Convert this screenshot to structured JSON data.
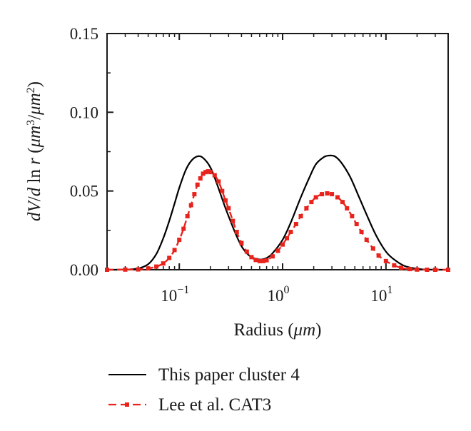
{
  "chart_data": {
    "type": "line",
    "xlabel_text": "Radius (",
    "xlabel_unit": "μm",
    "xlabel_close": ")",
    "ylabel_prefix": "dV",
    "ylabel_slash": "/",
    "ylabel_d": "d",
    "ylabel_ln": " ln ",
    "ylabel_r": "r",
    "ylabel_open": " (",
    "ylabel_um1": "μm",
    "ylabel_exp1": "3",
    "ylabel_slash2": "/",
    "ylabel_um2": "μm",
    "ylabel_exp2": "2",
    "ylabel_close": ")",
    "x_scale": "log",
    "xlim": [
      0.02,
      40
    ],
    "ylim": [
      0,
      0.15
    ],
    "x_ticks": [
      {
        "value": 0.1,
        "base": "10",
        "exp": "−1"
      },
      {
        "value": 1,
        "base": "10",
        "exp": "0"
      },
      {
        "value": 10,
        "base": "10",
        "exp": "1"
      }
    ],
    "y_ticks": [
      {
        "value": 0.0,
        "label": "0.00"
      },
      {
        "value": 0.05,
        "label": "0.05"
      },
      {
        "value": 0.1,
        "label": "0.10"
      },
      {
        "value": 0.15,
        "label": "0.15"
      }
    ],
    "grid": false,
    "legend_position": "bottom",
    "series": [
      {
        "name": "This paper cluster 4",
        "color": "#000000",
        "style": "solid",
        "points": [
          [
            0.02,
            0.0
          ],
          [
            0.03,
            0.0001
          ],
          [
            0.04,
            0.0008
          ],
          [
            0.05,
            0.0035
          ],
          [
            0.06,
            0.01
          ],
          [
            0.07,
            0.02
          ],
          [
            0.08,
            0.031
          ],
          [
            0.09,
            0.042
          ],
          [
            0.1,
            0.052
          ],
          [
            0.115,
            0.063
          ],
          [
            0.13,
            0.069
          ],
          [
            0.15,
            0.072
          ],
          [
            0.17,
            0.071
          ],
          [
            0.2,
            0.065
          ],
          [
            0.23,
            0.055
          ],
          [
            0.27,
            0.042
          ],
          [
            0.3,
            0.034
          ],
          [
            0.35,
            0.023
          ],
          [
            0.4,
            0.015
          ],
          [
            0.45,
            0.0105
          ],
          [
            0.5,
            0.008
          ],
          [
            0.6,
            0.0065
          ],
          [
            0.7,
            0.0075
          ],
          [
            0.8,
            0.0105
          ],
          [
            1.0,
            0.019
          ],
          [
            1.2,
            0.03
          ],
          [
            1.5,
            0.046
          ],
          [
            1.8,
            0.058
          ],
          [
            2.1,
            0.067
          ],
          [
            2.5,
            0.0715
          ],
          [
            2.8,
            0.0725
          ],
          [
            3.2,
            0.072
          ],
          [
            3.7,
            0.068
          ],
          [
            4.5,
            0.059
          ],
          [
            5.5,
            0.046
          ],
          [
            6.5,
            0.035
          ],
          [
            8.0,
            0.022
          ],
          [
            10,
            0.0115
          ],
          [
            12,
            0.0065
          ],
          [
            15,
            0.0025
          ],
          [
            20,
            0.0006
          ],
          [
            25,
            0.0001
          ],
          [
            40,
            0.0
          ]
        ]
      },
      {
        "name": "Lee et al. CAT3",
        "color": "#e8231c",
        "style": "dashed-square",
        "points": [
          [
            0.02,
            0.0
          ],
          [
            0.03,
            0.0001
          ],
          [
            0.04,
            0.0002
          ],
          [
            0.05,
            0.0008
          ],
          [
            0.06,
            0.002
          ],
          [
            0.07,
            0.004
          ],
          [
            0.08,
            0.0075
          ],
          [
            0.09,
            0.0125
          ],
          [
            0.1,
            0.019
          ],
          [
            0.11,
            0.026
          ],
          [
            0.12,
            0.034
          ],
          [
            0.13,
            0.041
          ],
          [
            0.14,
            0.048
          ],
          [
            0.15,
            0.054
          ],
          [
            0.16,
            0.058
          ],
          [
            0.17,
            0.061
          ],
          [
            0.18,
            0.062
          ],
          [
            0.19,
            0.0625
          ],
          [
            0.2,
            0.062
          ],
          [
            0.22,
            0.06
          ],
          [
            0.24,
            0.056
          ],
          [
            0.26,
            0.05
          ],
          [
            0.28,
            0.044
          ],
          [
            0.3,
            0.039
          ],
          [
            0.33,
            0.031
          ],
          [
            0.36,
            0.024
          ],
          [
            0.4,
            0.017
          ],
          [
            0.45,
            0.0115
          ],
          [
            0.5,
            0.008
          ],
          [
            0.55,
            0.0062
          ],
          [
            0.6,
            0.0055
          ],
          [
            0.65,
            0.0055
          ],
          [
            0.7,
            0.006
          ],
          [
            0.8,
            0.0085
          ],
          [
            0.9,
            0.012
          ],
          [
            1.0,
            0.016
          ],
          [
            1.1,
            0.02
          ],
          [
            1.2,
            0.024
          ],
          [
            1.35,
            0.029
          ],
          [
            1.5,
            0.034
          ],
          [
            1.7,
            0.039
          ],
          [
            1.9,
            0.043
          ],
          [
            2.1,
            0.046
          ],
          [
            2.4,
            0.048
          ],
          [
            2.7,
            0.0485
          ],
          [
            3.0,
            0.048
          ],
          [
            3.4,
            0.046
          ],
          [
            3.8,
            0.043
          ],
          [
            4.2,
            0.039
          ],
          [
            4.7,
            0.034
          ],
          [
            5.2,
            0.029
          ],
          [
            5.8,
            0.024
          ],
          [
            6.5,
            0.019
          ],
          [
            7.5,
            0.0135
          ],
          [
            8.5,
            0.009
          ],
          [
            10,
            0.0055
          ],
          [
            12,
            0.0028
          ],
          [
            14,
            0.0012
          ],
          [
            17,
            0.0004
          ],
          [
            20,
            0.0001
          ],
          [
            25,
            0.0
          ],
          [
            30,
            0.0
          ],
          [
            40,
            0.0
          ]
        ]
      }
    ]
  }
}
